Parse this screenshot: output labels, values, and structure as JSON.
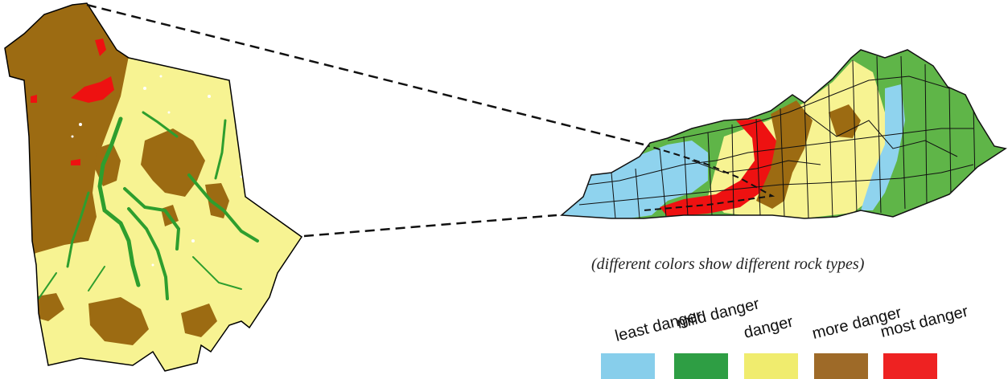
{
  "caption": "(different colors show different rock types)",
  "legend": [
    {
      "label": "least danger",
      "color": "#87ceeb"
    },
    {
      "label": "mild danger",
      "color": "#2e9e44"
    },
    {
      "label": "danger",
      "color": "#f0ec6e"
    },
    {
      "label": "more danger",
      "color": "#9e6a28"
    },
    {
      "label": "most danger",
      "color": "#ee2222"
    }
  ],
  "map_colors": {
    "limestone_blue": "#8fd3ee",
    "green": "#5fb548",
    "yellow": "#f7f392",
    "brown": "#9c6b12",
    "red": "#ee1111",
    "county_line": "#111111"
  }
}
